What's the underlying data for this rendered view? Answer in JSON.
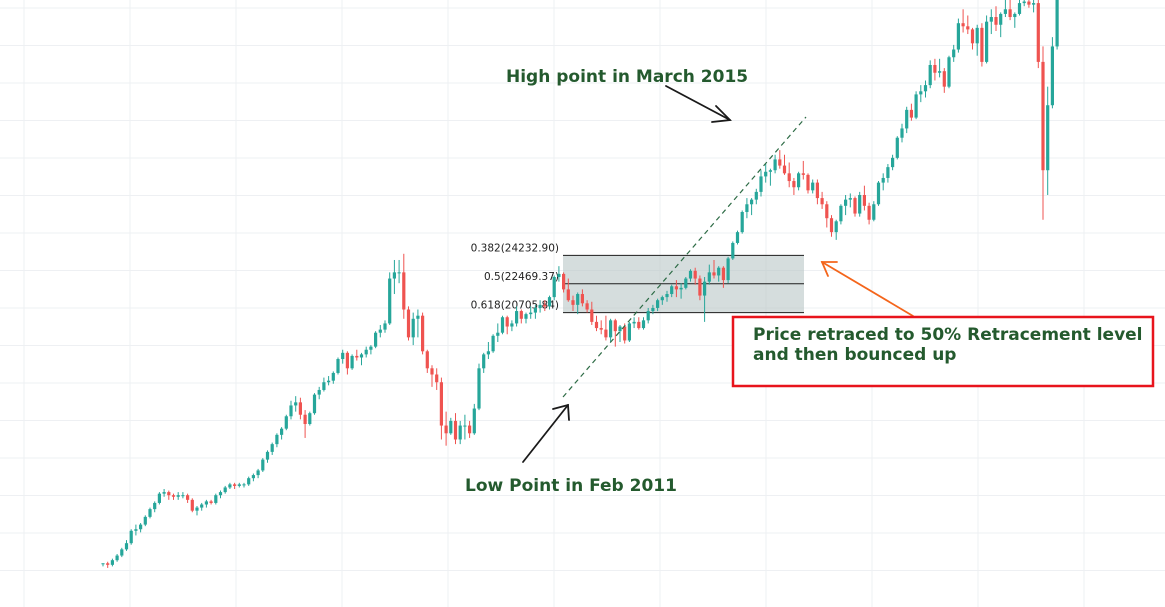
{
  "chart_data": {
    "type": "candlestick",
    "period": "monthly",
    "colors": {
      "up": "#26a69a",
      "down": "#ef5350",
      "grid": "#eef0f3",
      "annotation": "#245a2e",
      "highlight": "#e8141c",
      "arrow_orange": "#f4651b"
    },
    "candles": [
      [
        18.0,
        18.0,
        17.0,
        18.0
      ],
      [
        18.0,
        18.5,
        16.5,
        17.5
      ],
      [
        17.5,
        19.5,
        17.0,
        19.0
      ],
      [
        19.0,
        21.0,
        18.5,
        20.5
      ],
      [
        20.5,
        23.0,
        20.0,
        22.5
      ],
      [
        22.5,
        25.5,
        22.0,
        24.5
      ],
      [
        24.5,
        29.0,
        24.0,
        28.5
      ],
      [
        28.5,
        30.5,
        27.0,
        29.0
      ],
      [
        29.0,
        31.0,
        28.0,
        30.5
      ],
      [
        30.5,
        33.5,
        30.0,
        33.0
      ],
      [
        33.0,
        36.0,
        32.5,
        35.5
      ],
      [
        35.5,
        38.0,
        34.5,
        37.5
      ],
      [
        37.5,
        41.0,
        37.0,
        40.5
      ],
      [
        40.5,
        42.0,
        39.5,
        41.0
      ],
      [
        41.0,
        41.5,
        38.5,
        40.0
      ],
      [
        40.0,
        40.5,
        38.5,
        39.5
      ],
      [
        39.5,
        41.0,
        38.5,
        40.0
      ],
      [
        40.0,
        41.0,
        39.0,
        40.0
      ],
      [
        40.0,
        40.5,
        37.5,
        38.5
      ],
      [
        38.5,
        39.0,
        34.5,
        35.0
      ],
      [
        35.0,
        36.5,
        33.5,
        36.0
      ],
      [
        36.0,
        37.5,
        35.0,
        37.0
      ],
      [
        37.0,
        38.5,
        36.0,
        38.0
      ],
      [
        38.0,
        38.5,
        37.0,
        37.5
      ],
      [
        37.5,
        40.5,
        37.0,
        40.0
      ],
      [
        40.0,
        41.5,
        39.0,
        41.0
      ],
      [
        41.0,
        43.0,
        40.5,
        42.5
      ],
      [
        42.5,
        44.0,
        42.0,
        43.5
      ],
      [
        43.5,
        44.0,
        42.0,
        43.0
      ],
      [
        43.0,
        44.0,
        42.5,
        43.5
      ],
      [
        43.5,
        44.0,
        42.5,
        43.5
      ],
      [
        43.5,
        46.0,
        43.0,
        45.5
      ],
      [
        45.5,
        47.0,
        44.5,
        46.5
      ],
      [
        46.5,
        48.5,
        45.5,
        48.0
      ],
      [
        48.0,
        52.0,
        47.5,
        51.5
      ],
      [
        51.5,
        54.5,
        50.5,
        54.0
      ],
      [
        54.0,
        57.0,
        53.0,
        56.5
      ],
      [
        56.5,
        60.0,
        55.5,
        59.5
      ],
      [
        59.5,
        62.0,
        58.0,
        61.5
      ],
      [
        61.5,
        66.0,
        61.0,
        65.5
      ],
      [
        65.5,
        70.5,
        64.5,
        69.0
      ],
      [
        69.0,
        72.0,
        67.0,
        70.0
      ],
      [
        70.0,
        71.5,
        64.5,
        66.0
      ],
      [
        66.0,
        67.5,
        58.5,
        63.0
      ],
      [
        63.0,
        67.0,
        62.5,
        66.5
      ],
      [
        66.5,
        73.0,
        66.0,
        72.5
      ],
      [
        72.5,
        75.0,
        71.0,
        74.0
      ],
      [
        74.0,
        78.0,
        73.5,
        76.5
      ],
      [
        76.5,
        78.5,
        75.5,
        77.0
      ],
      [
        77.0,
        80.0,
        76.0,
        79.5
      ],
      [
        79.5,
        84.5,
        79.0,
        84.0
      ],
      [
        84.0,
        87.0,
        82.5,
        86.0
      ],
      [
        86.0,
        86.5,
        79.0,
        81.0
      ],
      [
        81.0,
        85.5,
        80.5,
        85.0
      ],
      [
        85.0,
        87.0,
        83.5,
        84.5
      ],
      [
        84.5,
        86.0,
        82.0,
        85.5
      ],
      [
        85.5,
        88.0,
        84.5,
        87.0
      ],
      [
        87.0,
        88.5,
        85.5,
        88.0
      ],
      [
        88.0,
        93.0,
        87.5,
        92.5
      ],
      [
        92.5,
        95.0,
        91.0,
        93.5
      ],
      [
        93.5,
        96.5,
        92.5,
        95.5
      ],
      [
        95.5,
        112.0,
        95.0,
        110.0
      ],
      [
        110.0,
        116.0,
        105.0,
        112.0
      ],
      [
        112.0,
        116.0,
        108.5,
        112.0
      ],
      [
        112.0,
        118.0,
        97.0,
        100.0
      ],
      [
        100.0,
        101.0,
        90.0,
        91.0
      ],
      [
        91.0,
        99.0,
        88.5,
        97.0
      ],
      [
        97.0,
        100.0,
        91.0,
        98.0
      ],
      [
        98.0,
        99.0,
        85.5,
        86.5
      ],
      [
        86.5,
        87.0,
        79.5,
        81.0
      ],
      [
        81.0,
        82.0,
        75.0,
        79.0
      ],
      [
        79.0,
        81.0,
        74.0,
        76.5
      ],
      [
        76.5,
        78.0,
        58.0,
        62.5
      ],
      [
        62.5,
        67.0,
        56.0,
        60.0
      ],
      [
        60.0,
        65.0,
        59.5,
        64.0
      ],
      [
        64.0,
        66.5,
        56.5,
        58.0
      ],
      [
        58.0,
        64.0,
        56.5,
        62.5
      ],
      [
        62.5,
        66.0,
        58.0,
        62.5
      ],
      [
        62.5,
        64.0,
        58.5,
        60.0
      ],
      [
        60.0,
        69.5,
        59.5,
        68.0
      ],
      [
        68.0,
        82.5,
        67.5,
        81.0
      ],
      [
        81.0,
        86.0,
        79.5,
        85.5
      ],
      [
        85.5,
        89.5,
        84.0,
        86.5
      ],
      [
        86.5,
        92.0,
        86.0,
        91.5
      ],
      [
        91.5,
        95.5,
        89.5,
        92.5
      ],
      [
        92.5,
        98.0,
        92.0,
        97.5
      ],
      [
        97.5,
        98.0,
        92.0,
        94.5
      ],
      [
        94.5,
        96.5,
        93.0,
        95.5
      ],
      [
        95.5,
        101.0,
        94.5,
        99.5
      ],
      [
        99.5,
        100.0,
        95.5,
        97.0
      ],
      [
        97.0,
        99.0,
        95.5,
        98.5
      ],
      [
        98.5,
        101.0,
        97.0,
        99.0
      ],
      [
        99.0,
        101.5,
        97.0,
        100.5
      ],
      [
        100.5,
        103.0,
        99.0,
        101.5
      ],
      [
        101.5,
        103.0,
        99.5,
        101.0
      ],
      [
        101.0,
        104.5,
        100.0,
        104.0
      ],
      [
        104.0,
        111.0,
        103.0,
        110.5
      ],
      [
        110.5,
        114.0,
        109.0,
        111.5
      ],
      [
        111.5,
        112.0,
        105.5,
        106.5
      ],
      [
        106.5,
        110.0,
        102.5,
        103.0
      ],
      [
        103.0,
        104.5,
        99.5,
        101.5
      ],
      [
        101.5,
        105.5,
        98.5,
        105.0
      ],
      [
        105.0,
        106.5,
        101.0,
        102.0
      ],
      [
        102.0,
        103.0,
        99.0,
        100.0
      ],
      [
        100.0,
        102.5,
        95.0,
        96.0
      ],
      [
        96.0,
        98.0,
        93.0,
        94.0
      ],
      [
        94.0,
        96.5,
        92.0,
        93.5
      ],
      [
        93.5,
        98.0,
        90.0,
        91.0
      ],
      [
        91.0,
        97.0,
        89.5,
        96.5
      ],
      [
        96.5,
        97.0,
        88.0,
        93.0
      ],
      [
        93.0,
        95.0,
        89.5,
        94.5
      ],
      [
        94.5,
        95.5,
        89.0,
        90.0
      ],
      [
        90.0,
        96.0,
        89.5,
        95.5
      ],
      [
        95.5,
        97.5,
        94.0,
        96.0
      ],
      [
        96.0,
        97.5,
        93.5,
        94.0
      ],
      [
        94.0,
        97.5,
        93.5,
        96.5
      ],
      [
        96.5,
        100.5,
        95.5,
        99.5
      ],
      [
        99.5,
        101.5,
        98.5,
        100.5
      ],
      [
        100.5,
        103.5,
        99.5,
        103.0
      ],
      [
        103.0,
        104.5,
        101.5,
        104.0
      ],
      [
        104.0,
        106.0,
        102.5,
        105.0
      ],
      [
        105.0,
        108.0,
        104.0,
        107.5
      ],
      [
        107.5,
        109.5,
        104.0,
        106.5
      ],
      [
        106.5,
        108.5,
        103.5,
        107.0
      ],
      [
        107.0,
        110.5,
        106.5,
        110.0
      ],
      [
        110.0,
        113.0,
        109.0,
        112.5
      ],
      [
        112.5,
        113.5,
        108.0,
        110.0
      ],
      [
        110.0,
        111.0,
        103.0,
        104.5
      ],
      [
        104.5,
        110.5,
        96.0,
        109.0
      ],
      [
        109.0,
        114.5,
        108.0,
        112.0
      ],
      [
        112.0,
        116.0,
        110.0,
        111.0
      ],
      [
        111.0,
        114.0,
        109.0,
        113.5
      ],
      [
        113.5,
        114.0,
        107.0,
        109.5
      ],
      [
        109.5,
        117.0,
        108.5,
        116.5
      ],
      [
        116.5,
        122.0,
        116.0,
        121.5
      ],
      [
        121.5,
        125.5,
        121.0,
        125.0
      ],
      [
        125.0,
        132.0,
        124.5,
        131.5
      ],
      [
        131.5,
        136.0,
        129.5,
        134.0
      ],
      [
        134.0,
        136.0,
        130.5,
        135.5
      ],
      [
        135.5,
        139.0,
        134.0,
        138.0
      ],
      [
        138.0,
        145.0,
        136.5,
        143.0
      ],
      [
        143.0,
        147.0,
        141.0,
        144.5
      ],
      [
        144.5,
        145.5,
        140.0,
        145.0
      ],
      [
        145.0,
        150.0,
        144.0,
        148.5
      ],
      [
        148.5,
        151.5,
        145.5,
        146.5
      ],
      [
        146.5,
        150.0,
        143.5,
        144.0
      ],
      [
        144.0,
        147.5,
        139.5,
        141.5
      ],
      [
        141.5,
        142.5,
        137.0,
        139.5
      ],
      [
        139.5,
        144.5,
        138.5,
        144.0
      ],
      [
        144.0,
        148.0,
        142.0,
        143.5
      ],
      [
        143.5,
        144.0,
        137.5,
        138.5
      ],
      [
        138.5,
        142.0,
        137.5,
        141.0
      ],
      [
        141.0,
        142.0,
        134.0,
        136.0
      ],
      [
        136.0,
        138.0,
        132.5,
        134.0
      ],
      [
        134.0,
        135.0,
        126.5,
        129.5
      ],
      [
        129.5,
        130.5,
        123.5,
        125.0
      ],
      [
        125.0,
        129.0,
        122.5,
        128.5
      ],
      [
        128.5,
        134.0,
        127.5,
        133.5
      ],
      [
        133.5,
        137.0,
        130.5,
        135.5
      ],
      [
        135.5,
        137.5,
        133.0,
        136.0
      ],
      [
        136.0,
        136.5,
        130.0,
        131.0
      ],
      [
        131.0,
        138.0,
        130.0,
        137.0
      ],
      [
        137.0,
        140.0,
        132.0,
        133.5
      ],
      [
        133.5,
        134.5,
        127.5,
        129.0
      ],
      [
        129.0,
        135.0,
        128.5,
        134.0
      ],
      [
        134.0,
        141.5,
        133.5,
        141.0
      ],
      [
        141.0,
        144.0,
        138.5,
        142.5
      ],
      [
        142.5,
        147.0,
        141.0,
        146.0
      ],
      [
        146.0,
        150.0,
        145.0,
        149.0
      ],
      [
        149.0,
        156.0,
        148.5,
        155.5
      ],
      [
        155.5,
        160.0,
        154.0,
        158.5
      ],
      [
        158.5,
        165.5,
        157.0,
        164.5
      ],
      [
        164.5,
        166.5,
        161.0,
        162.0
      ],
      [
        162.0,
        170.5,
        161.5,
        169.5
      ],
      [
        169.5,
        172.5,
        167.0,
        170.5
      ],
      [
        170.5,
        174.0,
        168.5,
        172.5
      ],
      [
        172.5,
        180.5,
        171.5,
        179.0
      ],
      [
        179.0,
        181.0,
        174.0,
        176.5
      ],
      [
        176.5,
        181.0,
        175.0,
        177.0
      ],
      [
        177.0,
        178.0,
        170.0,
        172.0
      ],
      [
        172.0,
        182.0,
        171.5,
        181.5
      ],
      [
        181.5,
        185.5,
        180.0,
        184.0
      ],
      [
        184.0,
        194.0,
        183.0,
        192.5
      ],
      [
        192.5,
        197.0,
        189.5,
        191.5
      ],
      [
        191.5,
        195.0,
        189.0,
        190.5
      ],
      [
        190.5,
        191.0,
        184.0,
        186.0
      ],
      [
        186.0,
        192.0,
        182.0,
        191.0
      ],
      [
        191.0,
        192.5,
        178.5,
        180.0
      ],
      [
        180.0,
        195.0,
        179.5,
        193.0
      ],
      [
        193.0,
        197.0,
        189.0,
        194.5
      ],
      [
        194.5,
        198.0,
        190.0,
        192.0
      ],
      [
        192.0,
        196.0,
        188.0,
        195.5
      ],
      [
        195.5,
        200.0,
        194.5,
        197.0
      ],
      [
        197.0,
        200.0,
        193.5,
        194.5
      ],
      [
        194.5,
        196.0,
        191.0,
        195.5
      ],
      [
        195.5,
        200.0,
        195.0,
        199.0
      ],
      [
        199.0,
        200.0,
        198.0,
        199.5
      ],
      [
        199.5,
        200.0,
        197.5,
        198.5
      ],
      [
        198.5,
        200.0,
        196.0,
        199.0
      ],
      [
        199.0,
        200.0,
        178.0,
        180.0
      ],
      [
        180.0,
        185.0,
        129.0,
        145.0
      ],
      [
        145.0,
        172.0,
        137.0,
        166.0
      ],
      [
        166.0,
        188.0,
        165.0,
        185.0
      ],
      [
        185.0,
        200.0,
        184.0,
        200.0
      ]
    ],
    "fibonacci": [
      {
        "ratio": "0.382",
        "level": "24232.90",
        "label": "0.382(24232.90)",
        "value": 117.5
      },
      {
        "ratio": "0.5",
        "level": "22469.37",
        "label": "0.5(22469.37)",
        "value": 108.3
      },
      {
        "ratio": "0.618",
        "level": "20705.84",
        "label": "0.618(20705.84)",
        "value": 99.0
      }
    ],
    "annotations": {
      "high": "High point in March 2015",
      "low": "Low Point in Feb 2011",
      "box_line1": "Price retraced to 50% Retracement level",
      "box_line2": "and then bounced up"
    }
  }
}
